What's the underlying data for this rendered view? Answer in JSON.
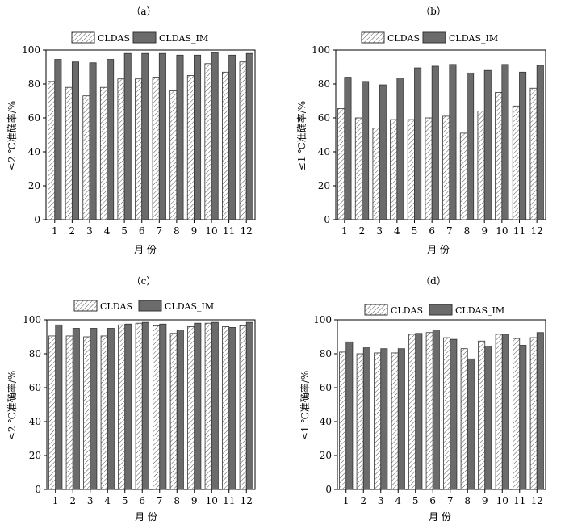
{
  "chart_data": [
    {
      "type": "bar",
      "panel_label": "（a）",
      "categories": [
        "1",
        "2",
        "3",
        "4",
        "5",
        "6",
        "7",
        "8",
        "9",
        "10",
        "11",
        "12"
      ],
      "xlabel": "月 份",
      "ylabel": "≤2 ℃准确率/%",
      "ylim": [
        0,
        100
      ],
      "yticks": [
        "0",
        "20",
        "40",
        "60",
        "80",
        "100"
      ],
      "series": [
        {
          "name": "CLDAS",
          "values": [
            81.5,
            78,
            73,
            78,
            83,
            83,
            84,
            76,
            85,
            92,
            87,
            93
          ]
        },
        {
          "name": "CLDAS_IM",
          "values": [
            94.5,
            93,
            92.5,
            94.5,
            98,
            98,
            98,
            97,
            97,
            98.5,
            97,
            98
          ]
        }
      ]
    },
    {
      "type": "bar",
      "panel_label": "（b）",
      "categories": [
        "1",
        "2",
        "3",
        "4",
        "5",
        "6",
        "7",
        "8",
        "9",
        "10",
        "11",
        "12"
      ],
      "xlabel": "月 份",
      "ylabel": "≤1 ℃准确率/%",
      "ylim": [
        0,
        100
      ],
      "yticks": [
        "0",
        "20",
        "40",
        "60",
        "80",
        "100"
      ],
      "series": [
        {
          "name": "CLDAS",
          "values": [
            65.5,
            60,
            54,
            59,
            59,
            60,
            61,
            51,
            64,
            75,
            67,
            77.5
          ]
        },
        {
          "name": "CLDAS_IM",
          "values": [
            84,
            81.5,
            79.5,
            83.5,
            89.5,
            90.5,
            91.5,
            86.5,
            88,
            91.5,
            87,
            91
          ]
        }
      ]
    },
    {
      "type": "bar",
      "panel_label": "（c）",
      "categories": [
        "1",
        "2",
        "3",
        "4",
        "5",
        "6",
        "7",
        "8",
        "9",
        "10",
        "11",
        "12"
      ],
      "xlabel": "月 份",
      "ylabel": "≤2 ℃准确率/%",
      "ylim": [
        0,
        100
      ],
      "yticks": [
        "0",
        "20",
        "40",
        "60",
        "80",
        "100"
      ],
      "series": [
        {
          "name": "CLDAS",
          "values": [
            90.5,
            90.5,
            90,
            90.5,
            97,
            98,
            96.5,
            92,
            96,
            98,
            96,
            96.5
          ]
        },
        {
          "name": "CLDAS_IM",
          "values": [
            97,
            95,
            95,
            95,
            97.5,
            98.5,
            97.5,
            94,
            98,
            98.5,
            95.5,
            98.5
          ]
        }
      ]
    },
    {
      "type": "bar",
      "panel_label": "（d）",
      "categories": [
        "1",
        "2",
        "3",
        "4",
        "5",
        "6",
        "7",
        "8",
        "9",
        "10",
        "11",
        "12"
      ],
      "xlabel": "月 份",
      "ylabel": "≤1 ℃准确率/%",
      "ylim": [
        0,
        100
      ],
      "yticks": [
        "0",
        "20",
        "40",
        "60",
        "80",
        "100"
      ],
      "series": [
        {
          "name": "CLDAS",
          "values": [
            81,
            80,
            80.5,
            80.5,
            91.5,
            92.5,
            89.5,
            83,
            87.5,
            91.5,
            89,
            89.5
          ]
        },
        {
          "name": "CLDAS_IM",
          "values": [
            87,
            83.5,
            83,
            83,
            92,
            94,
            88.5,
            77,
            84.5,
            91.5,
            85,
            92.5
          ]
        }
      ]
    }
  ]
}
